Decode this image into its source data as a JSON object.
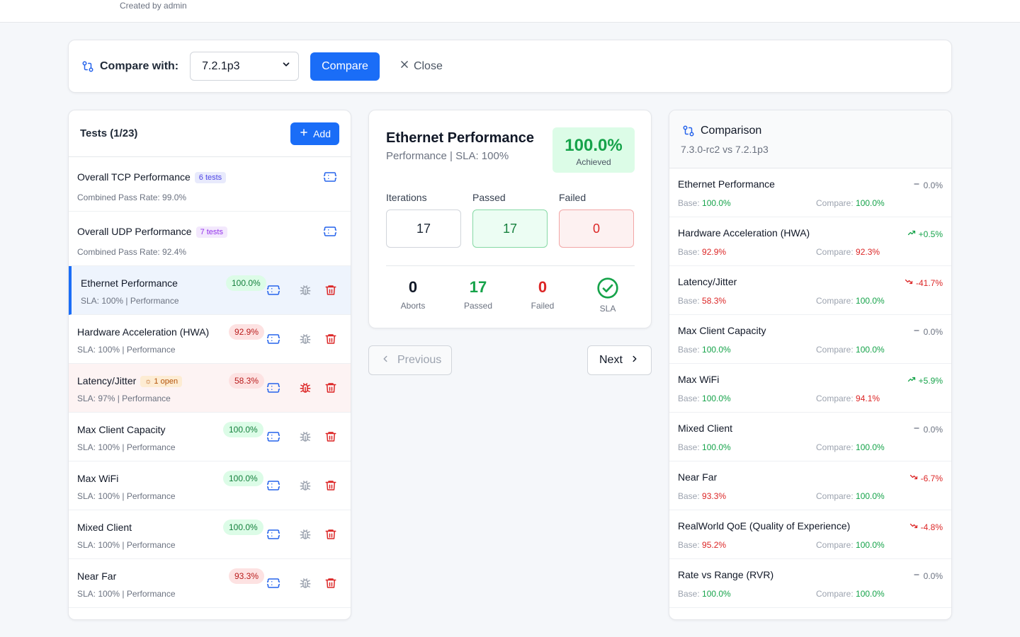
{
  "header": {
    "created_by": "Created by admin"
  },
  "compare_bar": {
    "label": "Compare with:",
    "selected_version": "7.2.1p3",
    "compare_button": "Compare",
    "close_button": "Close"
  },
  "tests_panel": {
    "title": "Tests (1/23)",
    "add_button": "Add",
    "groups": [
      {
        "name": "Overall TCP Performance",
        "chip": "6 tests",
        "sub": "Combined Pass Rate: 99.0%"
      },
      {
        "name": "Overall UDP Performance",
        "chip": "7 tests",
        "sub": "Combined Pass Rate: 92.4%"
      }
    ],
    "items": [
      {
        "name": "Ethernet Performance",
        "pct": "100.0%",
        "sub": "SLA: 100% | Performance"
      },
      {
        "name": "Hardware Acceleration (HWA)",
        "pct": "92.9%",
        "sub": "SLA: 100% | Performance"
      },
      {
        "name": "Latency/Jitter",
        "chip": "1 open",
        "pct": "58.3%",
        "sub": "SLA: 97% | Performance"
      },
      {
        "name": "Max Client Capacity",
        "pct": "100.0%",
        "sub": "SLA: 100% | Performance"
      },
      {
        "name": "Max WiFi",
        "pct": "100.0%",
        "sub": "SLA: 100% | Performance"
      },
      {
        "name": "Mixed Client",
        "pct": "100.0%",
        "sub": "SLA: 100% | Performance"
      },
      {
        "name": "Near Far",
        "pct": "93.3%",
        "sub": "SLA: 100% | Performance"
      }
    ]
  },
  "detail": {
    "title": "Ethernet Performance",
    "subtitle": "Performance | SLA: 100%",
    "achieved_value": "100.0%",
    "achieved_label": "Achieved",
    "iterations_label": "Iterations",
    "iterations": "17",
    "passed_label": "Passed",
    "passed": "17",
    "failed_label": "Failed",
    "failed": "0",
    "summary": {
      "aborts": "0",
      "aborts_label": "Aborts",
      "passed": "17",
      "passed_label": "Passed",
      "failed": "0",
      "failed_label": "Failed",
      "sla_label": "SLA"
    }
  },
  "nav": {
    "previous": "Previous",
    "next": "Next"
  },
  "comparison": {
    "title": "Comparison",
    "subtitle": "7.3.0-rc2 vs 7.2.1p3",
    "base_label": "Base:",
    "compare_label": "Compare:",
    "rows": [
      {
        "name": "Ethernet Performance",
        "delta": "0.0%",
        "base": "100.0%",
        "compare": "100.0%"
      },
      {
        "name": "Hardware Acceleration (HWA)",
        "delta": "+0.5%",
        "base": "92.9%",
        "compare": "92.3%"
      },
      {
        "name": "Latency/Jitter",
        "delta": "-41.7%",
        "base": "58.3%",
        "compare": "100.0%"
      },
      {
        "name": "Max Client Capacity",
        "delta": "0.0%",
        "base": "100.0%",
        "compare": "100.0%"
      },
      {
        "name": "Max WiFi",
        "delta": "+5.9%",
        "base": "100.0%",
        "compare": "94.1%"
      },
      {
        "name": "Mixed Client",
        "delta": "0.0%",
        "base": "100.0%",
        "compare": "100.0%"
      },
      {
        "name": "Near Far",
        "delta": "-6.7%",
        "base": "93.3%",
        "compare": "100.0%"
      },
      {
        "name": "RealWorld QoE (Quality of Experience)",
        "delta": "-4.8%",
        "base": "95.2%",
        "compare": "100.0%"
      },
      {
        "name": "Rate vs Range (RVR)",
        "delta": "0.0%",
        "base": "100.0%",
        "compare": "100.0%"
      }
    ]
  },
  "colors": {
    "primary": "#1a6df7",
    "success": "#16a34a",
    "danger": "#dc2626",
    "warning": "#b45309"
  }
}
